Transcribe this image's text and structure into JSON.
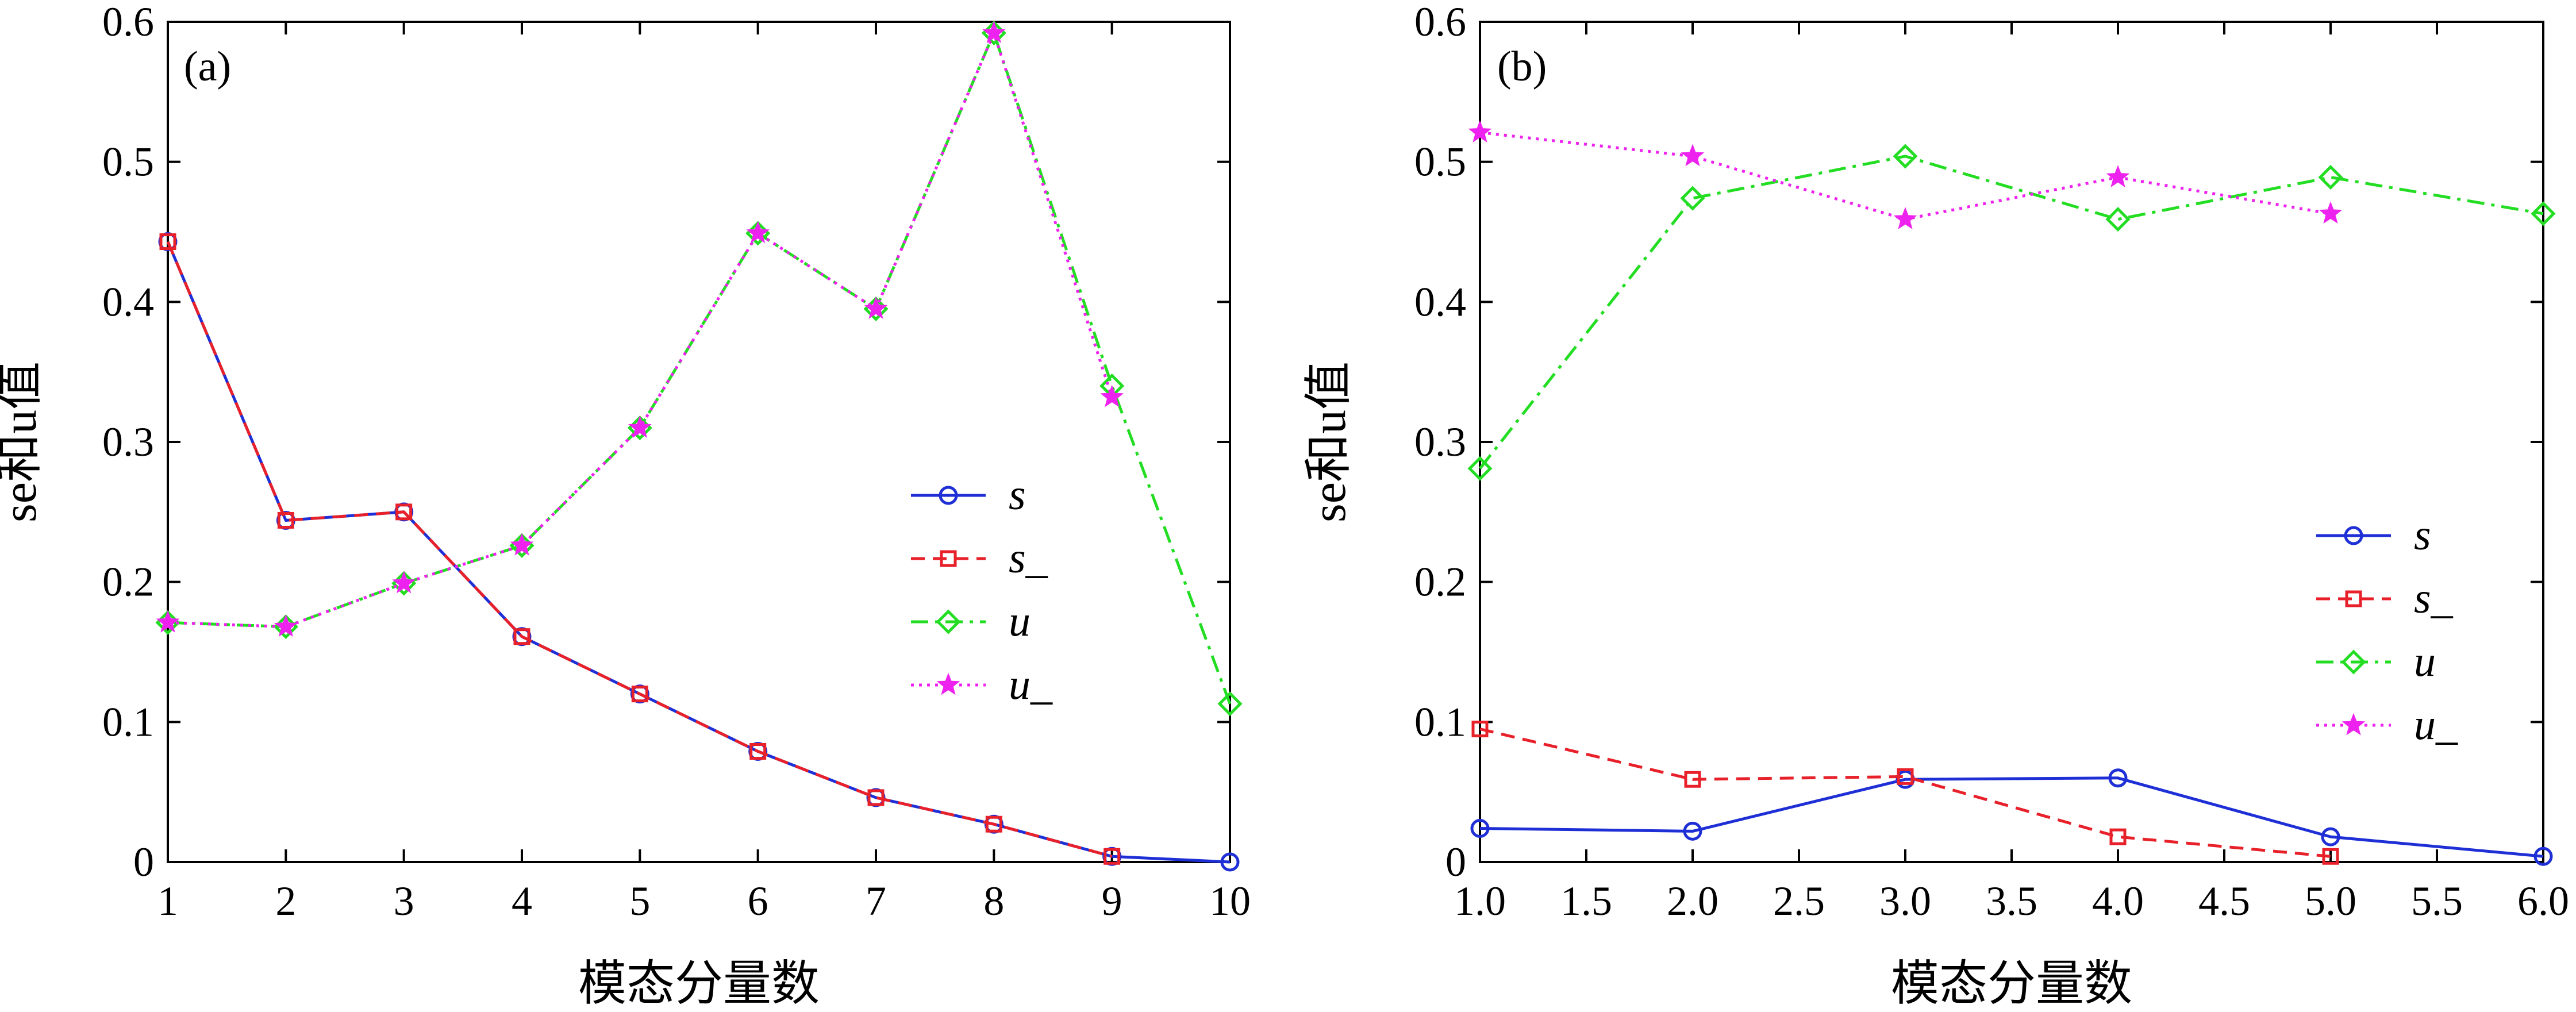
{
  "chart_data": [
    {
      "type": "line",
      "panel_label": "(a)",
      "xlabel": "模态分量数",
      "ylabel": "se和u值",
      "xlim": [
        1,
        10
      ],
      "ylim": [
        0,
        0.6
      ],
      "x_ticks": [
        1,
        2,
        3,
        4,
        5,
        6,
        7,
        8,
        9,
        10
      ],
      "x_tick_labels": [
        "1",
        "2",
        "3",
        "4",
        "5",
        "6",
        "7",
        "8",
        "9",
        "10"
      ],
      "y_ticks": [
        0,
        0.1,
        0.2,
        0.3,
        0.4,
        0.5,
        0.6
      ],
      "y_tick_labels": [
        "0",
        "0.1",
        "0.2",
        "0.3",
        "0.4",
        "0.5",
        "0.6"
      ],
      "legend_position": "right",
      "series": [
        {
          "name": "s",
          "color": "#1f2fd6",
          "dash": "solid",
          "marker": "circle",
          "x": [
            1,
            2,
            3,
            4,
            5,
            6,
            7,
            8,
            9,
            10
          ],
          "values": [
            0.443,
            0.244,
            0.25,
            0.161,
            0.12,
            0.079,
            0.046,
            0.027,
            0.004,
            0.0
          ]
        },
        {
          "name": "s_",
          "color": "#e8202a",
          "dash": "dashed",
          "marker": "square",
          "x": [
            1,
            2,
            3,
            4,
            5,
            6,
            7,
            8,
            9
          ],
          "values": [
            0.443,
            0.244,
            0.25,
            0.161,
            0.12,
            0.079,
            0.046,
            0.027,
            0.004
          ]
        },
        {
          "name": "u",
          "color": "#22dd22",
          "dash": "dashdot",
          "marker": "diamond",
          "x": [
            1,
            2,
            3,
            4,
            5,
            6,
            7,
            8,
            9,
            10
          ],
          "values": [
            0.171,
            0.168,
            0.199,
            0.226,
            0.31,
            0.449,
            0.395,
            0.592,
            0.34,
            0.113
          ]
        },
        {
          "name": "u_",
          "color": "#ee22ee",
          "dash": "dotted",
          "marker": "star",
          "x": [
            1,
            2,
            3,
            4,
            5,
            6,
            7,
            8,
            9
          ],
          "values": [
            0.171,
            0.168,
            0.199,
            0.226,
            0.31,
            0.449,
            0.395,
            0.592,
            0.332
          ]
        }
      ]
    },
    {
      "type": "line",
      "panel_label": "(b)",
      "xlabel": "模态分量数",
      "ylabel": "se和u值",
      "xlim": [
        1,
        6
      ],
      "ylim": [
        0,
        0.6
      ],
      "x_ticks": [
        1,
        1.5,
        2,
        2.5,
        3,
        3.5,
        4,
        4.5,
        5,
        5.5,
        6
      ],
      "x_tick_labels": [
        "1.0",
        "1.5",
        "2.0",
        "2.5",
        "3.0",
        "3.5",
        "4.0",
        "4.5",
        "5.0",
        "5.5",
        "6.0"
      ],
      "y_ticks": [
        0,
        0.1,
        0.2,
        0.3,
        0.4,
        0.5,
        0.6
      ],
      "y_tick_labels": [
        "0",
        "0.1",
        "0.2",
        "0.3",
        "0.4",
        "0.5",
        "0.6"
      ],
      "legend_position": "bottom-right",
      "series": [
        {
          "name": "s",
          "color": "#1f2fd6",
          "dash": "solid",
          "marker": "circle",
          "x": [
            1,
            2,
            3,
            4,
            5,
            6
          ],
          "values": [
            0.024,
            0.022,
            0.059,
            0.06,
            0.018,
            0.004
          ]
        },
        {
          "name": "s_",
          "color": "#e8202a",
          "dash": "dashed",
          "marker": "square",
          "x": [
            1,
            2,
            3,
            4,
            5
          ],
          "values": [
            0.095,
            0.059,
            0.061,
            0.018,
            0.004
          ]
        },
        {
          "name": "u",
          "color": "#22dd22",
          "dash": "dashdot",
          "marker": "diamond",
          "x": [
            1,
            2,
            3,
            4,
            5,
            6
          ],
          "values": [
            0.281,
            0.474,
            0.504,
            0.459,
            0.489,
            0.463
          ]
        },
        {
          "name": "u_",
          "color": "#ee22ee",
          "dash": "dotted",
          "marker": "star",
          "x": [
            1,
            2,
            3,
            4,
            5
          ],
          "values": [
            0.521,
            0.504,
            0.459,
            0.489,
            0.463
          ]
        }
      ]
    }
  ]
}
